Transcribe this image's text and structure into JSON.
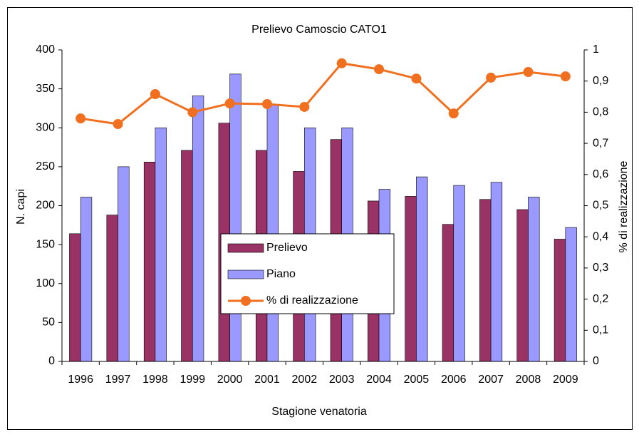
{
  "chart_data": {
    "type": "bar",
    "title": "Prelievo Camoscio CATO1",
    "x_label": "Stagione venatoria",
    "y_label": "N. capi",
    "y2_label": "% di realizzazione",
    "categories": [
      "1996",
      "1997",
      "1998",
      "1999",
      "2000",
      "2001",
      "2002",
      "2003",
      "2004",
      "2005",
      "2006",
      "2007",
      "2008",
      "2009"
    ],
    "series": [
      {
        "name": "Prelievo",
        "color": "#993366",
        "values": [
          164,
          188,
          256,
          271,
          306,
          271,
          244,
          285,
          206,
          212,
          176,
          208,
          195,
          157
        ]
      },
      {
        "name": "Piano",
        "color": "#9999ff",
        "values": [
          211,
          250,
          300,
          341,
          369,
          330,
          300,
          300,
          221,
          237,
          226,
          230,
          211,
          172
        ]
      },
      {
        "name": "% di realizzazione",
        "color": "#f07020",
        "type": "line",
        "axis": "y2",
        "values": [
          0.78,
          0.762,
          0.858,
          0.8,
          0.828,
          0.826,
          0.817,
          0.957,
          0.938,
          0.908,
          0.796,
          0.911,
          0.929,
          0.915
        ]
      }
    ],
    "ylim": [
      0,
      400
    ],
    "yticks": [
      0,
      50,
      100,
      150,
      200,
      250,
      300,
      350,
      400
    ],
    "y2lim": [
      0,
      1
    ],
    "y2ticks": [
      0,
      {
        "value": 0.1,
        "label": "0,1"
      },
      {
        "value": 0.2,
        "label": "0,2"
      },
      {
        "value": 0.3,
        "label": "0,3"
      },
      {
        "value": 0.4,
        "label": "0,4"
      },
      {
        "value": 0.5,
        "label": "0,5"
      },
      {
        "value": 0.6,
        "label": "0,6"
      },
      {
        "value": 0.7,
        "label": "0,7"
      },
      {
        "value": 0.8,
        "label": "0,8"
      },
      {
        "value": 0.9,
        "label": "0,9"
      },
      1
    ],
    "legend": "center"
  }
}
